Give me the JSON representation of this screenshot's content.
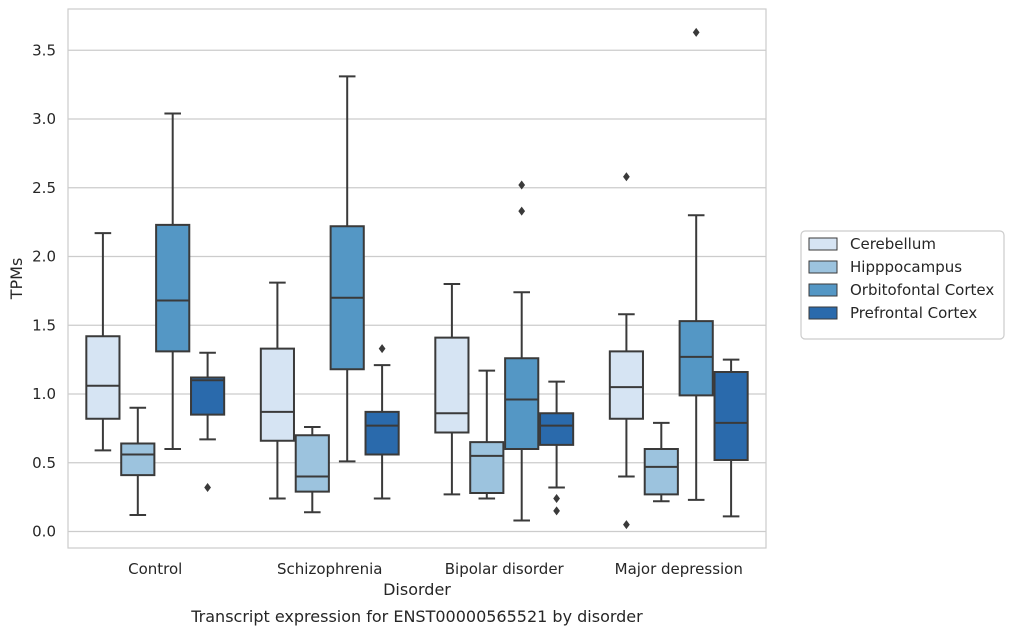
{
  "chart_data": {
    "type": "box",
    "title": "",
    "caption": "Transcript expression for ENST00000565521 by disorder",
    "xlabel": "Disorder",
    "ylabel": "TPMs",
    "ylim": [
      -0.12,
      3.8
    ],
    "yticks": [
      "0.0",
      "0.5",
      "1.0",
      "1.5",
      "2.0",
      "2.5",
      "3.0",
      "3.5"
    ],
    "grid": "horizontal",
    "legend_position": "right",
    "categories": [
      "Control",
      "Schizophrenia",
      "Bipolar disorder",
      "Major depression"
    ],
    "series": [
      {
        "name": "Cerebellum",
        "color": "#d6e4f3",
        "boxes": [
          {
            "min": 0.59,
            "q1": 0.82,
            "median": 1.06,
            "q3": 1.42,
            "max": 2.17,
            "outliers": []
          },
          {
            "min": 0.24,
            "q1": 0.66,
            "median": 0.87,
            "q3": 1.33,
            "max": 1.81,
            "outliers": []
          },
          {
            "min": 0.27,
            "q1": 0.72,
            "median": 0.86,
            "q3": 1.41,
            "max": 1.8,
            "outliers": []
          },
          {
            "min": 0.4,
            "q1": 0.82,
            "median": 1.05,
            "q3": 1.31,
            "max": 1.58,
            "outliers": [
              2.58,
              0.05
            ]
          }
        ]
      },
      {
        "name": "Hipppocampus",
        "color": "#9cc3de",
        "boxes": [
          {
            "min": 0.12,
            "q1": 0.41,
            "median": 0.56,
            "q3": 0.64,
            "max": 0.9,
            "outliers": []
          },
          {
            "min": 0.14,
            "q1": 0.29,
            "median": 0.4,
            "q3": 0.7,
            "max": 0.76,
            "outliers": []
          },
          {
            "min": 0.24,
            "q1": 0.28,
            "median": 0.55,
            "q3": 0.65,
            "max": 1.17,
            "outliers": []
          },
          {
            "min": 0.22,
            "q1": 0.27,
            "median": 0.47,
            "q3": 0.6,
            "max": 0.79,
            "outliers": []
          }
        ]
      },
      {
        "name": "Orbitofontal Cortex",
        "color": "#5497c5",
        "boxes": [
          {
            "min": 0.6,
            "q1": 1.31,
            "median": 1.68,
            "q3": 2.23,
            "max": 3.04,
            "outliers": []
          },
          {
            "min": 0.51,
            "q1": 1.18,
            "median": 1.7,
            "q3": 2.22,
            "max": 3.31,
            "outliers": []
          },
          {
            "min": 0.08,
            "q1": 0.6,
            "median": 0.96,
            "q3": 1.26,
            "max": 1.74,
            "outliers": [
              2.52,
              2.33
            ]
          },
          {
            "min": 0.23,
            "q1": 0.99,
            "median": 1.27,
            "q3": 1.53,
            "max": 2.3,
            "outliers": [
              3.63
            ]
          }
        ]
      },
      {
        "name": "Prefrontal Cortex",
        "color": "#2a6aac",
        "boxes": [
          {
            "min": 0.67,
            "q1": 0.85,
            "median": 1.1,
            "q3": 1.12,
            "max": 1.3,
            "outliers": [
              0.32
            ]
          },
          {
            "min": 0.24,
            "q1": 0.56,
            "median": 0.77,
            "q3": 0.87,
            "max": 1.21,
            "outliers": [
              1.33
            ]
          },
          {
            "min": 0.32,
            "q1": 0.63,
            "median": 0.77,
            "q3": 0.86,
            "max": 1.09,
            "outliers": [
              0.24,
              0.15
            ]
          },
          {
            "min": 0.11,
            "q1": 0.52,
            "median": 0.79,
            "q3": 1.16,
            "max": 1.25,
            "outliers": []
          }
        ]
      }
    ]
  }
}
